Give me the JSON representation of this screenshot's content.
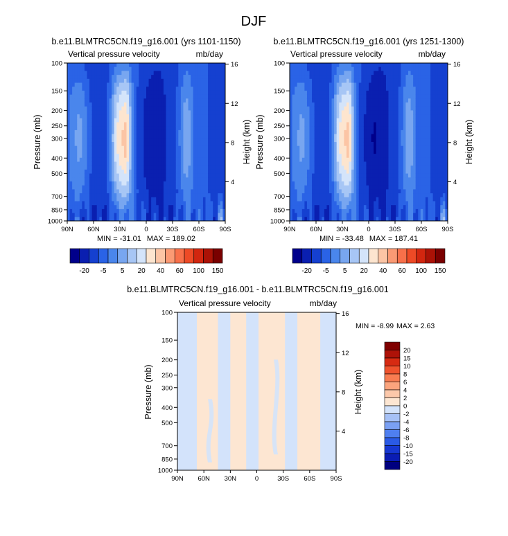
{
  "figure": {
    "title": "DJF",
    "palette": {
      "wap": [
        "#00008b",
        "#0a1fb0",
        "#1540d0",
        "#2a63e6",
        "#4a86ec",
        "#78a6f0",
        "#a7c6f5",
        "#d4e4fa",
        "#fde5cf",
        "#fcc5a5",
        "#fb9a74",
        "#f8704a",
        "#ee4a26",
        "#d2260f",
        "#ab1206",
        "#7a0000"
      ],
      "diff": [
        "#00007f",
        "#0a1cb4",
        "#1637d2",
        "#2a5ae6",
        "#4f7ff0",
        "#7aa0f3",
        "#a6c1f6",
        "#d3e3fb",
        "#fde6d2",
        "#fcc8aa",
        "#fba47d",
        "#f87c51",
        "#ef522d",
        "#d62a12",
        "#ae1208",
        "#7f0000"
      ]
    }
  },
  "chart_data": [
    {
      "type": "heatmap",
      "name": "panel-left",
      "title": "b.e11.BLMTRC5CN.f19_g16.001 (yrs 1101-1150)",
      "left_label": "Vertical pressure velocity",
      "right_label": "mb/day",
      "xlabel": "",
      "ylabel": "Pressure (mb)",
      "y2label": "Height (km)",
      "x_ticks": [
        "90N",
        "60N",
        "30N",
        "0",
        "30S",
        "60S",
        "90S"
      ],
      "x_values": [
        90,
        60,
        30,
        0,
        -30,
        -60,
        -90
      ],
      "y_ticks": [
        "100",
        "150",
        "200",
        "250",
        "300",
        "400",
        "500",
        "700",
        "850",
        "1000"
      ],
      "y_values": [
        100,
        150,
        200,
        250,
        300,
        400,
        500,
        700,
        850,
        1000
      ],
      "y2_ticks": [
        "16",
        "12",
        "8",
        "4"
      ],
      "y2_values": [
        16,
        12,
        8,
        4
      ],
      "ylim": [
        100,
        1000
      ],
      "xlim": [
        90,
        -90
      ],
      "min_label": "MIN = -31.01",
      "max_label": "MAX = 189.02",
      "colorbar_labels": [
        "-20",
        "-5",
        "5",
        "20",
        "40",
        "60",
        "100",
        "150"
      ],
      "colorbar_levels": [
        -20,
        -15,
        -10,
        -5,
        0,
        5,
        10,
        15,
        20,
        30,
        40,
        50,
        60,
        80,
        100,
        150
      ],
      "features": [
        {
          "lat": 32,
          "halfwidth": 9,
          "value": 14
        },
        {
          "lat": 22,
          "halfwidth": 6,
          "value": 10
        },
        {
          "lat": -4,
          "halfwidth": 14,
          "value": -18
        },
        {
          "lat": -45,
          "halfwidth": 8,
          "value": 2
        },
        {
          "lat": 75,
          "halfwidth": 12,
          "value": 1
        },
        {
          "lat": -85,
          "halfwidth": 4,
          "value": 170
        }
      ]
    },
    {
      "type": "heatmap",
      "name": "panel-right",
      "title": "b.e11.BLMTRC5CN.f19_g16.001 (yrs 1251-1300)",
      "left_label": "Vertical pressure velocity",
      "right_label": "mb/day",
      "xlabel": "",
      "ylabel": "Pressure (mb)",
      "y2label": "Height (km)",
      "x_ticks": [
        "90N",
        "60N",
        "30N",
        "0",
        "30S",
        "60S",
        "90S"
      ],
      "x_values": [
        90,
        60,
        30,
        0,
        -30,
        -60,
        -90
      ],
      "y_ticks": [
        "100",
        "150",
        "200",
        "250",
        "300",
        "400",
        "500",
        "700",
        "850",
        "1000"
      ],
      "y_values": [
        100,
        150,
        200,
        250,
        300,
        400,
        500,
        700,
        850,
        1000
      ],
      "y2_ticks": [
        "16",
        "12",
        "8",
        "4"
      ],
      "y2_values": [
        16,
        12,
        8,
        4
      ],
      "ylim": [
        100,
        1000
      ],
      "xlim": [
        90,
        -90
      ],
      "min_label": "MIN = -33.48",
      "max_label": "MAX = 187.41",
      "colorbar_labels": [
        "-20",
        "-5",
        "5",
        "20",
        "40",
        "60",
        "100",
        "150"
      ],
      "colorbar_levels": [
        -20,
        -15,
        -10,
        -5,
        0,
        5,
        10,
        15,
        20,
        30,
        40,
        50,
        60,
        80,
        100,
        150
      ],
      "features": [
        {
          "lat": 32,
          "halfwidth": 9,
          "value": 14
        },
        {
          "lat": 22,
          "halfwidth": 6,
          "value": 10
        },
        {
          "lat": -4,
          "halfwidth": 14,
          "value": -19
        },
        {
          "lat": -45,
          "halfwidth": 8,
          "value": 2
        },
        {
          "lat": 75,
          "halfwidth": 12,
          "value": 1
        },
        {
          "lat": -85,
          "halfwidth": 4,
          "value": 168
        }
      ]
    },
    {
      "type": "heatmap",
      "name": "panel-diff",
      "title": "b.e11.BLMTRC5CN.f19_g16.001 - b.e11.BLMTRC5CN.f19_g16.001",
      "left_label": "Vertical pressure velocity",
      "right_label": "mb/day",
      "xlabel": "",
      "ylabel": "Pressure (mb)",
      "y2label": "Height (km)",
      "x_ticks": [
        "90N",
        "60N",
        "30N",
        "0",
        "30S",
        "60S",
        "90S"
      ],
      "x_values": [
        90,
        60,
        30,
        0,
        -30,
        -60,
        -90
      ],
      "y_ticks": [
        "100",
        "150",
        "200",
        "250",
        "300",
        "400",
        "500",
        "700",
        "850",
        "1000"
      ],
      "y_values": [
        100,
        150,
        200,
        250,
        300,
        400,
        500,
        700,
        850,
        1000
      ],
      "y2_ticks": [
        "16",
        "12",
        "8",
        "4"
      ],
      "y2_values": [
        16,
        12,
        8,
        4
      ],
      "ylim": [
        100,
        1000
      ],
      "xlim": [
        90,
        -90
      ],
      "min_label": "MIN = -8.99",
      "max_label": "MAX =  2.63",
      "colorbar_labels": [
        "20",
        "15",
        "10",
        "8",
        "6",
        "4",
        "2",
        "0",
        "-2",
        "-4",
        "-6",
        "-8",
        "-10",
        "-15",
        "-20"
      ],
      "colorbar_levels": [
        -20,
        -15,
        -10,
        -8,
        -6,
        -4,
        -2,
        0,
        2,
        4,
        6,
        8,
        10,
        15,
        20
      ],
      "bands": [
        {
          "from": 90,
          "to": 68,
          "sign": "neg"
        },
        {
          "from": 68,
          "to": 44,
          "sign": "pos"
        },
        {
          "from": 44,
          "to": 30,
          "sign": "neg"
        },
        {
          "from": 30,
          "to": 12,
          "sign": "pos"
        },
        {
          "from": 12,
          "to": -2,
          "sign": "neg"
        },
        {
          "from": -2,
          "to": -32,
          "sign": "pos"
        },
        {
          "from": -32,
          "to": -46,
          "sign": "neg"
        },
        {
          "from": -46,
          "to": -72,
          "sign": "pos"
        },
        {
          "from": -72,
          "to": -90,
          "sign": "neg"
        }
      ]
    }
  ]
}
